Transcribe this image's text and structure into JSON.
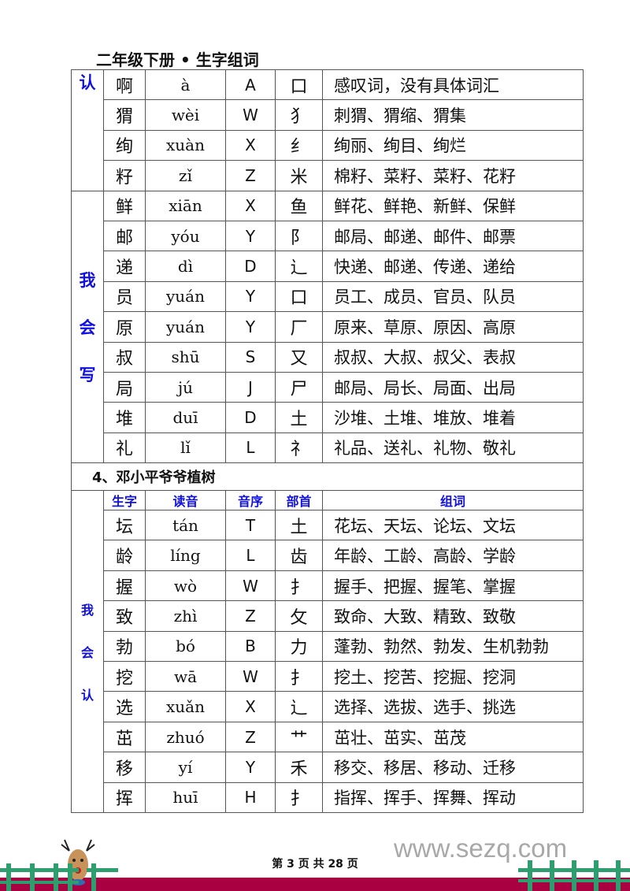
{
  "header": {
    "title": "二年级下册 • 生字组词"
  },
  "block1": {
    "label": "认",
    "rows": [
      [
        "啊",
        "à",
        "A",
        "口",
        "感叹词，没有具体词汇"
      ],
      [
        "猬",
        "wèi",
        "W",
        "犭",
        "刺猬、猬缩、猬集"
      ],
      [
        "绚",
        "xuàn",
        "X",
        "纟",
        "绚丽、绚目、绚烂"
      ],
      [
        "籽",
        "zǐ",
        "Z",
        "米",
        "棉籽、菜籽、菜籽、花籽"
      ]
    ]
  },
  "block2": {
    "label": [
      "我",
      "会",
      "写"
    ],
    "rows": [
      [
        "鲜",
        "xiān",
        "X",
        "鱼",
        "鲜花、鲜艳、新鲜、保鲜"
      ],
      [
        "邮",
        "yóu",
        "Y",
        "阝",
        "邮局、邮递、邮件、邮票"
      ],
      [
        "递",
        "dì",
        "D",
        "辶",
        "快递、邮递、传递、递给"
      ],
      [
        "员",
        "yuán",
        "Y",
        "口",
        "员工、成员、官员、队员"
      ],
      [
        "原",
        "yuán",
        "Y",
        "厂",
        "原来、草原、原因、高原"
      ],
      [
        "叔",
        "shū",
        "S",
        "又",
        "叔叔、大叔、叔父、表叔"
      ],
      [
        "局",
        "jú",
        "J",
        "尸",
        "邮局、局长、局面、出局"
      ],
      [
        "堆",
        "duī",
        "D",
        "土",
        "沙堆、土堆、堆放、堆着"
      ],
      [
        "礼",
        "lǐ",
        "L",
        "礻",
        "礼品、送礼、礼物、敬礼"
      ]
    ]
  },
  "section": {
    "title": "4、邓小平爷爷植树"
  },
  "columns": [
    "生字",
    "读音",
    "音序",
    "部首",
    "组词"
  ],
  "block3": {
    "label": [
      "我",
      "会",
      "认"
    ],
    "rows": [
      [
        "坛",
        "tán",
        "T",
        "土",
        "花坛、天坛、论坛、文坛"
      ],
      [
        "龄",
        "líng",
        "L",
        "齿",
        "年龄、工龄、高龄、学龄"
      ],
      [
        "握",
        "wò",
        "W",
        "扌",
        "握手、把握、握笔、掌握"
      ],
      [
        "致",
        "zhì",
        "Z",
        "攵",
        "致命、大致、精致、致敬"
      ],
      [
        "勃",
        "bó",
        "B",
        "力",
        "蓬勃、勃然、勃发、生机勃勃"
      ],
      [
        "挖",
        "wā",
        "W",
        "扌",
        "挖土、挖苦、挖掘、挖洞"
      ],
      [
        "选",
        "xuǎn",
        "X",
        "辶",
        "选择、选拔、选手、挑选"
      ],
      [
        "茁",
        "zhuó",
        "Z",
        "艹",
        "茁壮、茁实、茁茂"
      ],
      [
        "移",
        "yí",
        "Y",
        "禾",
        "移交、移居、移动、迁移"
      ],
      [
        "挥",
        "huī",
        "H",
        "扌",
        "指挥、挥手、挥舞、挥动"
      ]
    ]
  },
  "footer": {
    "page": "第 3 页 共 28 页",
    "watermark": "www.sezq.com"
  },
  "colors": {
    "label_blue": "#1010e0",
    "footer_bar": "#a80040",
    "fence_green": "#2e9e6e"
  }
}
